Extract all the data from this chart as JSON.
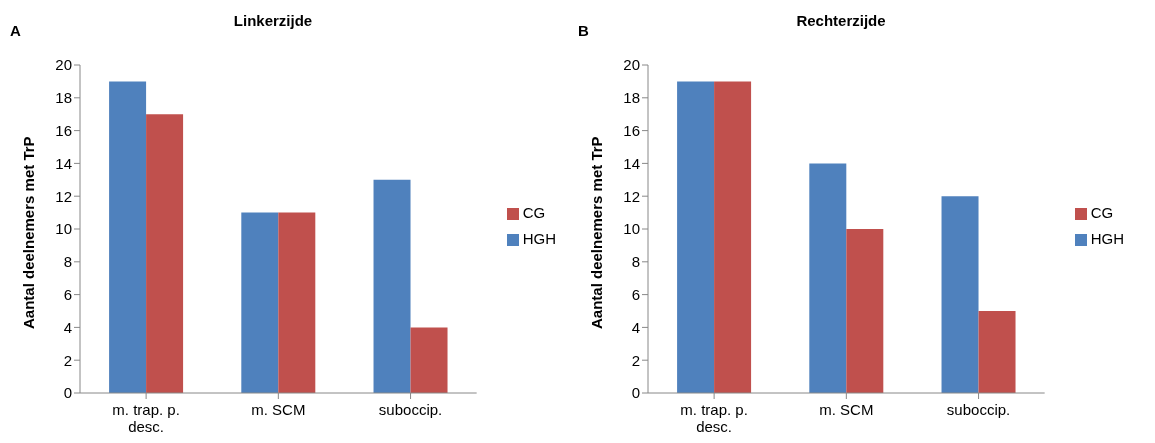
{
  "chart_data": [
    {
      "type": "bar",
      "title": "Linkerzijde",
      "annotations": [
        "A"
      ],
      "ylabel": "Aantal deelnemers met TrP",
      "categories": [
        "m. trap. p. desc.",
        "m. SCM",
        "suboccip."
      ],
      "series": [
        {
          "name": "HGH",
          "color": "#4f81bd",
          "values": [
            19,
            11,
            13
          ]
        },
        {
          "name": "CG",
          "color": "#c0504d",
          "values": [
            17,
            11,
            4
          ]
        }
      ],
      "ylim": [
        0,
        20
      ],
      "yticks": [
        0,
        2,
        4,
        6,
        8,
        10,
        12,
        14,
        16,
        18,
        20
      ],
      "grid": false,
      "legend": "right"
    },
    {
      "type": "bar",
      "title": "Rechterzijde",
      "annotations": [
        "B"
      ],
      "ylabel": "Aantal deelnemers met TrP",
      "categories": [
        "m. trap. p. desc.",
        "m. SCM",
        "suboccip."
      ],
      "series": [
        {
          "name": "HGH",
          "color": "#4f81bd",
          "values": [
            19,
            14,
            12
          ]
        },
        {
          "name": "CG",
          "color": "#c0504d",
          "values": [
            19,
            10,
            5
          ]
        }
      ],
      "ylim": [
        0,
        20
      ],
      "yticks": [
        0,
        2,
        4,
        6,
        8,
        10,
        12,
        14,
        16,
        18,
        20
      ],
      "grid": false,
      "legend": "right"
    }
  ]
}
